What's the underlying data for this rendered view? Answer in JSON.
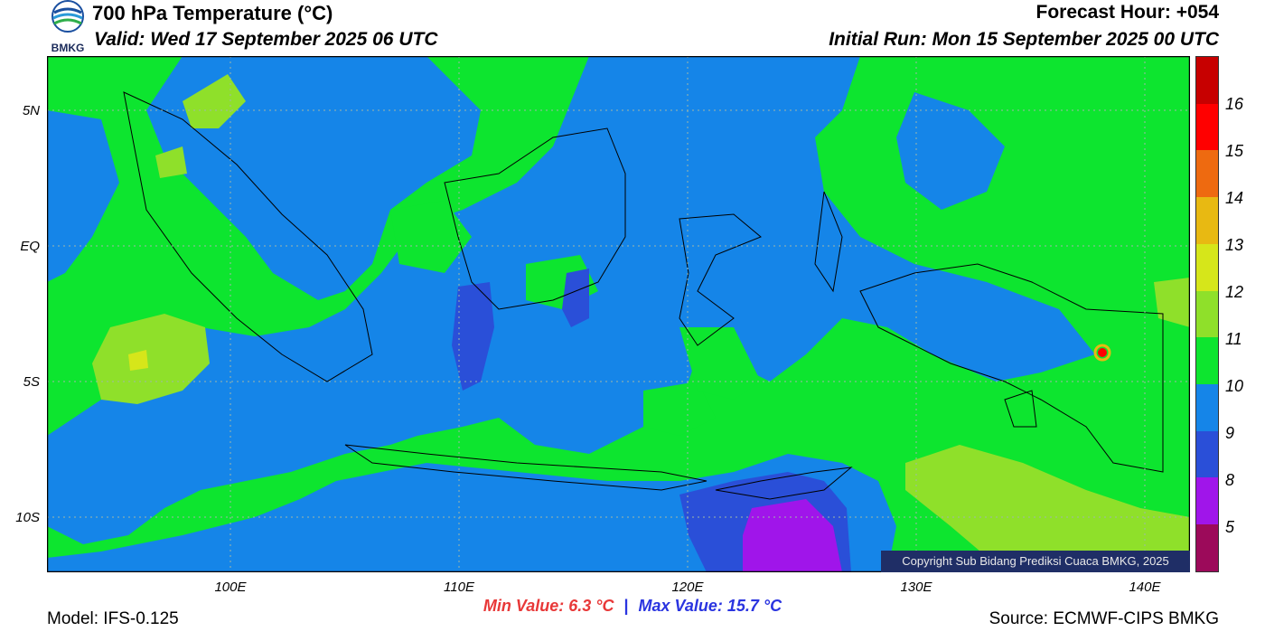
{
  "logo": {
    "text": "BMKG",
    "icon": "bmkg-logo-icon"
  },
  "header": {
    "title": "700 hPa Temperature (°C)",
    "valid": "Valid: Wed 17 September 2025 06 UTC",
    "forecast_hour": "Forecast Hour: +054",
    "initial_run": "Initial Run: Mon 15 September 2025 00 UTC"
  },
  "axes": {
    "lat_labels": [
      "5N",
      "EQ",
      "5S",
      "10S"
    ],
    "lon_labels": [
      "100E",
      "110E",
      "120E",
      "130E",
      "140E"
    ]
  },
  "colorbar": {
    "labels": [
      "16",
      "15",
      "14",
      "13",
      "12",
      "11",
      "10",
      "9",
      "8",
      "5"
    ],
    "colors": [
      "#c70000",
      "#ff0000",
      "#ee6a10",
      "#e8b912",
      "#d6e61a",
      "#8fe02a",
      "#0de52f",
      "#1585e8",
      "#2a4fd8",
      "#a015ea",
      "#9c0a5a"
    ]
  },
  "stats": {
    "min": "Min Value: 6.3 °C",
    "sep": "|",
    "max": "Max Value: 15.7 °C"
  },
  "footer": {
    "model": "Model: IFS-0.125",
    "source": "Source: ECMWF-CIPS BMKG",
    "copyright": "Copyright Sub Bidang Prediksi Cuaca BMKG, 2025"
  },
  "map_colors": {
    "t9": "#1585e8",
    "t10": "#0de52f",
    "t11": "#8fe02a",
    "t12": "#d6e61a",
    "t8": "#2a4fd8",
    "t7": "#a015ea",
    "t15": "#ff0000"
  }
}
